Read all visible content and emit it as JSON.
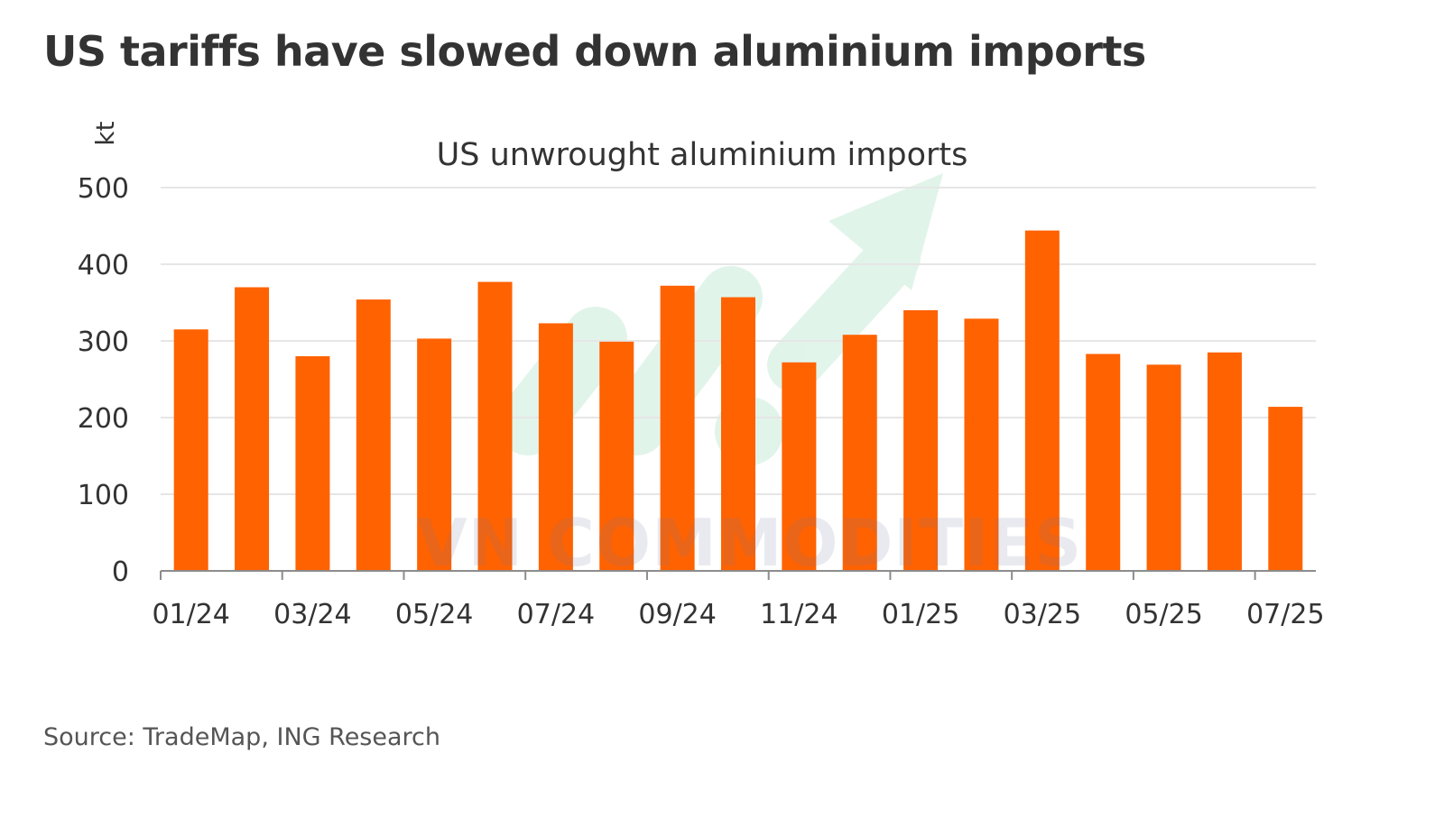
{
  "header": {
    "title": "US tariffs have slowed down aluminium imports"
  },
  "footer": {
    "source": "Source: TradeMap, ING Research"
  },
  "watermark": {
    "text": "VN COMMODITIES"
  },
  "colors": {
    "bar": "#ff6200",
    "grid": "#e6e6e6",
    "axis": "#8c8c8c",
    "text": "#333333",
    "watermark_arrow": "#c9ecd9"
  },
  "chart_data": {
    "type": "bar",
    "title": "US unwrought aluminium imports",
    "ylabel": "kt",
    "xlabel": "",
    "ylim": [
      0,
      500
    ],
    "yticks": [
      0,
      100,
      200,
      300,
      400,
      500
    ],
    "grid": true,
    "categories": [
      "01/24",
      "02/24",
      "03/24",
      "04/24",
      "05/24",
      "06/24",
      "07/24",
      "08/24",
      "09/24",
      "10/24",
      "11/24",
      "12/24",
      "01/25",
      "02/25",
      "03/25",
      "04/25",
      "05/25",
      "06/25",
      "07/25"
    ],
    "xtick_labels": [
      "01/24",
      "03/24",
      "05/24",
      "07/24",
      "09/24",
      "11/24",
      "01/25",
      "03/25",
      "05/25",
      "07/25"
    ],
    "values": [
      315,
      370,
      280,
      354,
      303,
      377,
      323,
      299,
      372,
      357,
      272,
      308,
      340,
      329,
      444,
      283,
      269,
      285,
      214
    ]
  }
}
